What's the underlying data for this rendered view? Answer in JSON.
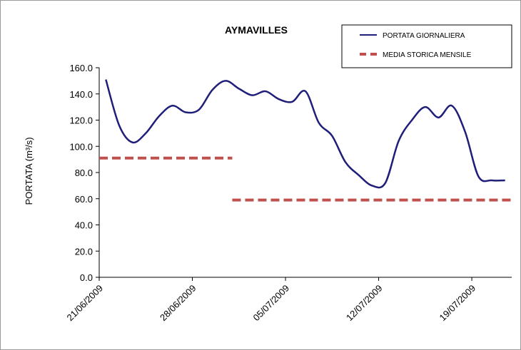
{
  "chart_data": {
    "type": "line",
    "title": "AYMAVILLES",
    "ylabel": "PORTATA (m³/s)",
    "xlabel": "",
    "ylim": [
      0,
      160
    ],
    "yticks": [
      "0.0",
      "20.0",
      "40.0",
      "60.0",
      "80.0",
      "100.0",
      "120.0",
      "140.0",
      "160.0"
    ],
    "xlim": [
      0,
      31
    ],
    "xtick_positions": [
      0,
      7,
      14,
      21,
      28
    ],
    "xtick_labels": [
      "21/06/2009",
      "28/06/2009",
      "05/07/2009",
      "12/07/2009",
      "19/07/2009"
    ],
    "grid": false,
    "legend_position": "top-right",
    "series": [
      {
        "name": "PORTATA GIORNALIERA",
        "color": "#1f1f7a",
        "style": "solid",
        "x": [
          0.5,
          1.5,
          2.5,
          3.5,
          4.5,
          5.5,
          6.5,
          7.5,
          8.5,
          9.5,
          10.5,
          11.5,
          12.5,
          13.5,
          14.5,
          15.5,
          16.5,
          17.5,
          18.5,
          19.5,
          20.5,
          21.5,
          22.5,
          23.5,
          24.5,
          25.5,
          26.5,
          27.5,
          28.5,
          29.5,
          30.5
        ],
        "y": [
          151,
          116,
          103,
          110,
          123,
          131,
          126,
          128,
          143,
          150,
          144,
          139,
          142,
          136,
          134,
          142,
          118,
          108,
          88,
          78,
          70,
          72,
          104,
          120,
          130,
          122,
          131,
          111,
          77,
          74,
          74
        ]
      },
      {
        "name": "MEDIA STORICA MENSILE",
        "color": "#c0504d",
        "style": "dashed",
        "segments": [
          {
            "x": [
              0,
              10
            ],
            "y": [
              91,
              91
            ]
          },
          {
            "x": [
              10,
              31
            ],
            "y": [
              59,
              59
            ]
          }
        ]
      }
    ]
  }
}
